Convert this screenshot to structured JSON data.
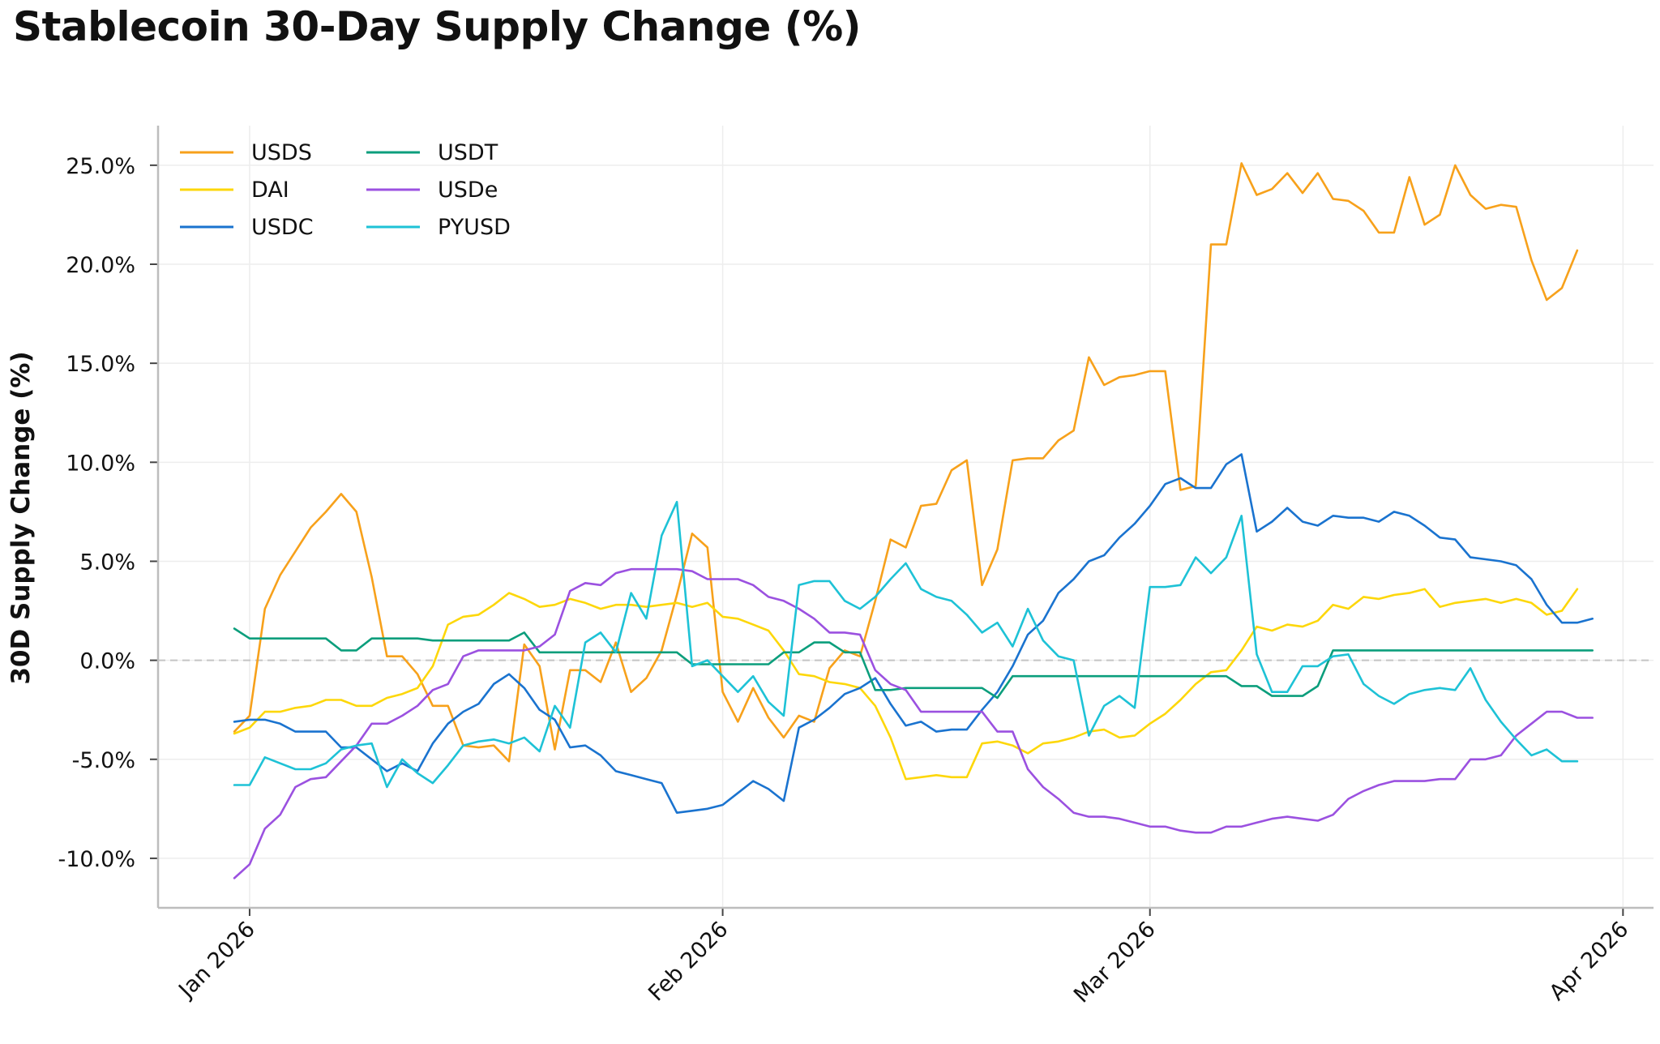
{
  "chart_data": {
    "type": "line",
    "title": "Stablecoin 30-Day Supply Change (%)",
    "xlabel": "",
    "ylabel": "30D Supply Change (%)",
    "x_ticks": [
      "Jan 2026",
      "Feb 2026",
      "Mar 2026",
      "Apr 2026"
    ],
    "x_range": [
      "2025-12-26",
      "2026-04-03"
    ],
    "y_ticks": [
      "25.0%",
      "20.0%",
      "15.0%",
      "10.0%",
      "5.0%",
      "0.0%",
      "-5.0%",
      "-10.0%"
    ],
    "y_tick_values": [
      25,
      20,
      15,
      10,
      5,
      0,
      -5,
      -10
    ],
    "ylim": [
      -12.5,
      27
    ],
    "grid": true,
    "zero_line": "dashed",
    "legend_placement": "top-left",
    "series": [
      {
        "name": "USDS",
        "color": "#f7a11b",
        "start": "2025-12-31",
        "values": [
          -3.6,
          -2.8,
          2.6,
          4.3,
          5.5,
          6.7,
          7.5,
          8.4,
          7.5,
          4.2,
          0.2,
          0.2,
          -0.7,
          -2.3,
          -2.3,
          -4.3,
          -4.4,
          -4.3,
          -5.1,
          0.8,
          -0.3,
          -4.5,
          -0.5,
          -0.5,
          -1.1,
          0.9,
          -1.6,
          -0.9,
          0.5,
          3.3,
          6.4,
          5.7,
          -1.6,
          -3.1,
          -1.4,
          -2.9,
          -3.9,
          -2.8,
          -3.1,
          -0.4,
          0.5,
          0.2,
          3.0,
          6.1,
          5.7,
          7.8,
          7.9,
          9.6,
          10.1,
          3.8,
          5.6,
          10.1,
          10.2,
          10.2,
          11.1,
          11.6,
          15.3,
          13.9,
          14.3,
          14.4,
          14.6,
          14.6,
          8.6,
          8.8,
          21.0,
          21.0,
          25.1,
          23.5,
          23.8,
          24.6,
          23.6,
          24.6,
          23.3,
          23.2,
          22.7,
          21.6,
          21.6,
          24.4,
          22.0,
          22.5,
          25.0,
          23.5,
          22.8,
          23.0,
          22.9,
          20.2,
          18.2,
          18.8,
          20.7
        ]
      },
      {
        "name": "DAI",
        "color": "#fdd70a",
        "start": "2025-12-31",
        "values": [
          -3.7,
          -3.4,
          -2.6,
          -2.6,
          -2.4,
          -2.3,
          -2.0,
          -2.0,
          -2.3,
          -2.3,
          -1.9,
          -1.7,
          -1.4,
          -0.3,
          1.8,
          2.2,
          2.3,
          2.8,
          3.4,
          3.1,
          2.7,
          2.8,
          3.1,
          2.9,
          2.6,
          2.8,
          2.8,
          2.7,
          2.8,
          2.9,
          2.7,
          2.9,
          2.2,
          2.1,
          1.8,
          1.5,
          0.5,
          -0.7,
          -0.8,
          -1.1,
          -1.2,
          -1.4,
          -2.3,
          -3.9,
          -6.0,
          -5.9,
          -5.8,
          -5.9,
          -5.9,
          -4.2,
          -4.1,
          -4.3,
          -4.7,
          -4.2,
          -4.1,
          -3.9,
          -3.6,
          -3.5,
          -3.9,
          -3.8,
          -3.2,
          -2.7,
          -2.0,
          -1.2,
          -0.6,
          -0.5,
          0.5,
          1.7,
          1.5,
          1.8,
          1.7,
          2.0,
          2.8,
          2.6,
          3.2,
          3.1,
          3.3,
          3.4,
          3.6,
          2.7,
          2.9,
          3.0,
          3.1,
          2.9,
          3.1,
          2.9,
          2.3,
          2.5,
          3.6
        ]
      },
      {
        "name": "USDC",
        "color": "#1a73cf",
        "start": "2025-12-31",
        "values": [
          -3.1,
          -3.0,
          -3.0,
          -3.2,
          -3.6,
          -3.6,
          -3.6,
          -4.4,
          -4.4,
          -5.0,
          -5.6,
          -5.2,
          -5.6,
          -4.2,
          -3.2,
          -2.6,
          -2.2,
          -1.2,
          -0.7,
          -1.4,
          -2.5,
          -3.0,
          -4.4,
          -4.3,
          -4.8,
          -5.6,
          -5.8,
          -6.0,
          -6.2,
          -7.7,
          -7.6,
          -7.5,
          -7.3,
          -6.7,
          -6.1,
          -6.5,
          -7.1,
          -3.4,
          -3.0,
          -2.4,
          -1.7,
          -1.4,
          -0.9,
          -2.2,
          -3.3,
          -3.1,
          -3.6,
          -3.5,
          -3.5,
          -2.5,
          -1.6,
          -0.3,
          1.3,
          2.0,
          3.4,
          4.1,
          5.0,
          5.3,
          6.2,
          6.9,
          7.8,
          8.9,
          9.2,
          8.7,
          8.7,
          9.9,
          10.4,
          6.5,
          7.0,
          7.7,
          7.0,
          6.8,
          7.3,
          7.2,
          7.2,
          7.0,
          7.5,
          7.3,
          6.8,
          6.2,
          6.1,
          5.2,
          5.1,
          5.0,
          4.8,
          4.1,
          2.8,
          1.9,
          1.9,
          2.1
        ]
      },
      {
        "name": "USDT",
        "color": "#0b9e7c",
        "start": "2025-12-31",
        "values": [
          1.6,
          1.1,
          1.1,
          1.1,
          1.1,
          1.1,
          1.1,
          0.5,
          0.5,
          1.1,
          1.1,
          1.1,
          1.1,
          1.0,
          1.0,
          1.0,
          1.0,
          1.0,
          1.0,
          1.4,
          0.4,
          0.4,
          0.4,
          0.4,
          0.4,
          0.4,
          0.4,
          0.4,
          0.4,
          0.4,
          -0.2,
          -0.2,
          -0.2,
          -0.2,
          -0.2,
          -0.2,
          0.4,
          0.4,
          0.9,
          0.9,
          0.4,
          0.4,
          -1.5,
          -1.5,
          -1.4,
          -1.4,
          -1.4,
          -1.4,
          -1.4,
          -1.4,
          -1.9,
          -0.8,
          -0.8,
          -0.8,
          -0.8,
          -0.8,
          -0.8,
          -0.8,
          -0.8,
          -0.8,
          -0.8,
          -0.8,
          -0.8,
          -0.8,
          -0.8,
          -0.8,
          -1.3,
          -1.3,
          -1.8,
          -1.8,
          -1.8,
          -1.3,
          0.5,
          0.5,
          0.5,
          0.5,
          0.5,
          0.5,
          0.5,
          0.5,
          0.5,
          0.5,
          0.5,
          0.5,
          0.5,
          0.5,
          0.5,
          0.5,
          0.5,
          0.5
        ]
      },
      {
        "name": "USDe",
        "color": "#9b51e0",
        "start": "2025-12-31",
        "values": [
          -11.0,
          -10.3,
          -8.5,
          -7.8,
          -6.4,
          -6.0,
          -5.9,
          -5.1,
          -4.3,
          -3.2,
          -3.2,
          -2.8,
          -2.3,
          -1.5,
          -1.2,
          0.2,
          0.5,
          0.5,
          0.5,
          0.5,
          0.7,
          1.3,
          3.5,
          3.9,
          3.8,
          4.4,
          4.6,
          4.6,
          4.6,
          4.6,
          4.5,
          4.1,
          4.1,
          4.1,
          3.8,
          3.2,
          3.0,
          2.6,
          2.1,
          1.4,
          1.4,
          1.3,
          -0.5,
          -1.2,
          -1.5,
          -2.6,
          -2.6,
          -2.6,
          -2.6,
          -2.6,
          -3.6,
          -3.6,
          -5.5,
          -6.4,
          -7.0,
          -7.7,
          -7.9,
          -7.9,
          -8.0,
          -8.2,
          -8.4,
          -8.4,
          -8.6,
          -8.7,
          -8.7,
          -8.4,
          -8.4,
          -8.2,
          -8.0,
          -7.9,
          -8.0,
          -8.1,
          -7.8,
          -7.0,
          -6.6,
          -6.3,
          -6.1,
          -6.1,
          -6.1,
          -6.0,
          -6.0,
          -5.0,
          -5.0,
          -4.8,
          -3.8,
          -3.2,
          -2.6,
          -2.6,
          -2.9,
          -2.9
        ]
      },
      {
        "name": "PYUSD",
        "color": "#1ec2d6",
        "start": "2025-12-31",
        "values": [
          -6.3,
          -6.3,
          -4.9,
          -5.2,
          -5.5,
          -5.5,
          -5.2,
          -4.5,
          -4.3,
          -4.2,
          -6.4,
          -5.0,
          -5.7,
          -6.2,
          -5.3,
          -4.3,
          -4.1,
          -4.0,
          -4.2,
          -3.9,
          -4.6,
          -2.3,
          -3.4,
          0.9,
          1.4,
          0.4,
          3.4,
          2.1,
          6.3,
          8.0,
          -0.3,
          0.0,
          -0.8,
          -1.6,
          -0.8,
          -2.1,
          -2.8,
          3.8,
          4.0,
          4.0,
          3.0,
          2.6,
          3.2,
          4.1,
          4.9,
          3.6,
          3.2,
          3.0,
          2.3,
          1.4,
          1.9,
          0.7,
          2.6,
          1.0,
          0.2,
          0.0,
          -3.8,
          -2.3,
          -1.8,
          -2.4,
          3.7,
          3.7,
          3.8,
          5.2,
          4.4,
          5.2,
          7.3,
          0.3,
          -1.6,
          -1.6,
          -0.3,
          -0.3,
          0.2,
          0.3,
          -1.2,
          -1.8,
          -2.2,
          -1.7,
          -1.5,
          -1.4,
          -1.5,
          -0.4,
          -2.0,
          -3.1,
          -4.0,
          -4.8,
          -4.5,
          -5.1,
          -5.1
        ]
      }
    ]
  }
}
